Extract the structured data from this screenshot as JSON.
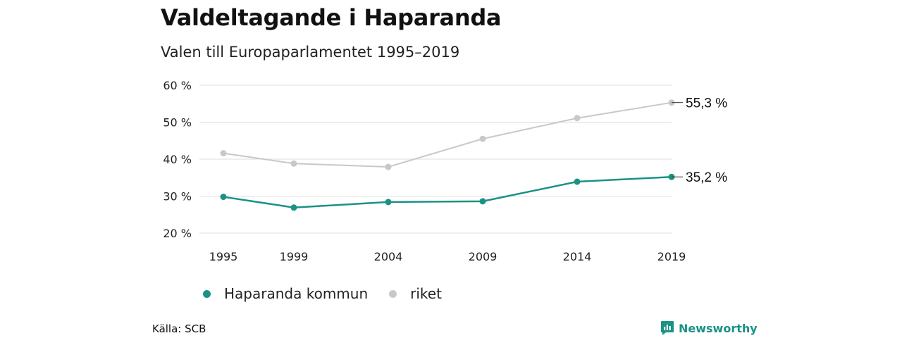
{
  "title": "Valdeltagande i Haparanda",
  "subtitle": "Valen till Europaparlamentet 1995–2019",
  "source": "Källa: SCB",
  "brand": "Newsworthy",
  "colors": {
    "haparanda": "#1a9284",
    "riket": "#c8c8c8",
    "grid": "#dddddd"
  },
  "chart_data": {
    "type": "line",
    "title": "Valdeltagande i Haparanda",
    "subtitle": "Valen till Europaparlamentet 1995–2019",
    "x": [
      1995,
      1999,
      2004,
      2009,
      2014,
      2019
    ],
    "ylim": [
      20,
      60
    ],
    "yticks": [
      20,
      30,
      40,
      50,
      60
    ],
    "ytick_labels": [
      "20 %",
      "30 %",
      "40 %",
      "50 %",
      "60 %"
    ],
    "grid": true,
    "legend_position": "bottom",
    "series": [
      {
        "name": "Haparanda kommun",
        "color": "#1a9284",
        "values": [
          29.8,
          26.9,
          28.4,
          28.6,
          33.9,
          35.2
        ],
        "end_label": "35,2 %"
      },
      {
        "name": "riket",
        "color": "#c8c8c8",
        "values": [
          41.6,
          38.8,
          37.9,
          45.5,
          51.1,
          55.3
        ],
        "end_label": "55,3 %"
      }
    ]
  }
}
